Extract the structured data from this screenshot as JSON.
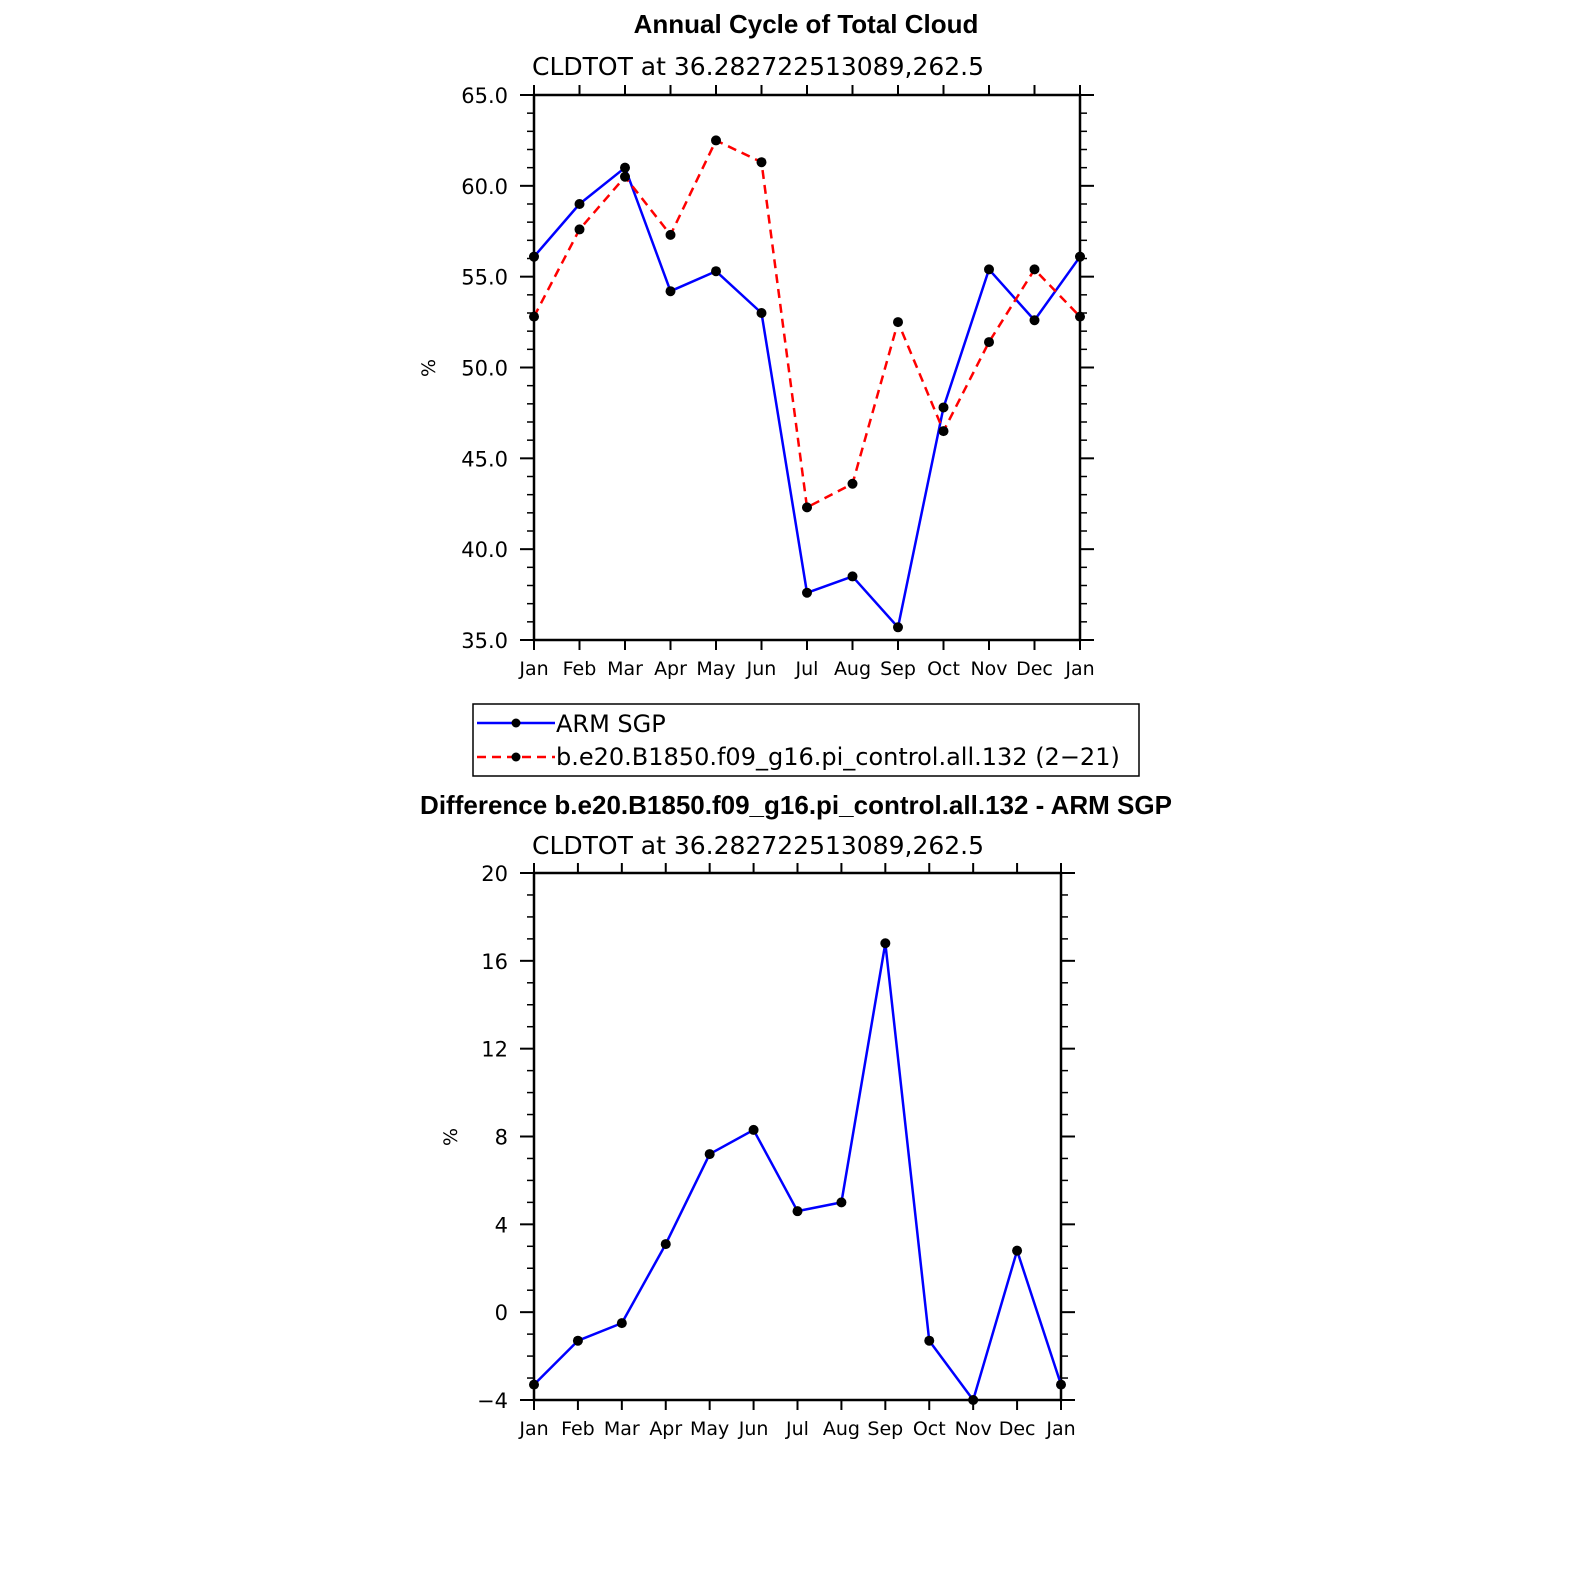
{
  "chart_data": [
    {
      "type": "line",
      "title": "Annual Cycle of Total Cloud",
      "subtitle": "CLDTOT at 36.282722513089,262.5",
      "ylabel": "%",
      "ylim": [
        35,
        65
      ],
      "yticks": [
        "35.0",
        "40.0",
        "45.0",
        "50.0",
        "55.0",
        "60.0",
        "65.0"
      ],
      "yticks_values": [
        35,
        40,
        45,
        50,
        55,
        60,
        65
      ],
      "categories": [
        "Jan",
        "Feb",
        "Mar",
        "Apr",
        "May",
        "Jun",
        "Jul",
        "Aug",
        "Sep",
        "Oct",
        "Nov",
        "Dec",
        "Jan"
      ],
      "grid": false,
      "legend_position": "below",
      "series": [
        {
          "name": "ARM SGP",
          "color": "#0000ff",
          "dash": "solid",
          "values": [
            56.1,
            59.0,
            61.0,
            54.2,
            55.3,
            53.0,
            37.6,
            38.5,
            35.7,
            47.8,
            55.4,
            52.6,
            56.1
          ]
        },
        {
          "name": "b.e20.B1850.f09_g16.pi_control.all.132 (2−21)",
          "color": "#ff0000",
          "dash": "dashed",
          "values": [
            52.8,
            57.6,
            60.5,
            57.3,
            62.5,
            61.3,
            42.3,
            43.6,
            52.5,
            46.5,
            51.4,
            55.4,
            52.8
          ]
        }
      ]
    },
    {
      "type": "line",
      "title": "Difference b.e20.B1850.f09_g16.pi_control.all.132 - ARM SGP",
      "subtitle": "CLDTOT at 36.282722513089,262.5",
      "ylabel": "%",
      "ylim": [
        -4,
        20
      ],
      "yticks": [
        "−4",
        "0",
        "4",
        "8",
        "12",
        "16",
        "20"
      ],
      "yticks_values": [
        -4,
        0,
        4,
        8,
        12,
        16,
        20
      ],
      "categories": [
        "Jan",
        "Feb",
        "Mar",
        "Apr",
        "May",
        "Jun",
        "Jul",
        "Aug",
        "Sep",
        "Oct",
        "Nov",
        "Dec",
        "Jan"
      ],
      "grid": false,
      "series": [
        {
          "color": "#0000ff",
          "dash": "solid",
          "values": [
            -3.3,
            -1.3,
            -0.5,
            3.1,
            7.2,
            8.3,
            4.6,
            5.0,
            16.8,
            -1.3,
            -4.0,
            2.8,
            -3.3
          ]
        }
      ]
    }
  ]
}
